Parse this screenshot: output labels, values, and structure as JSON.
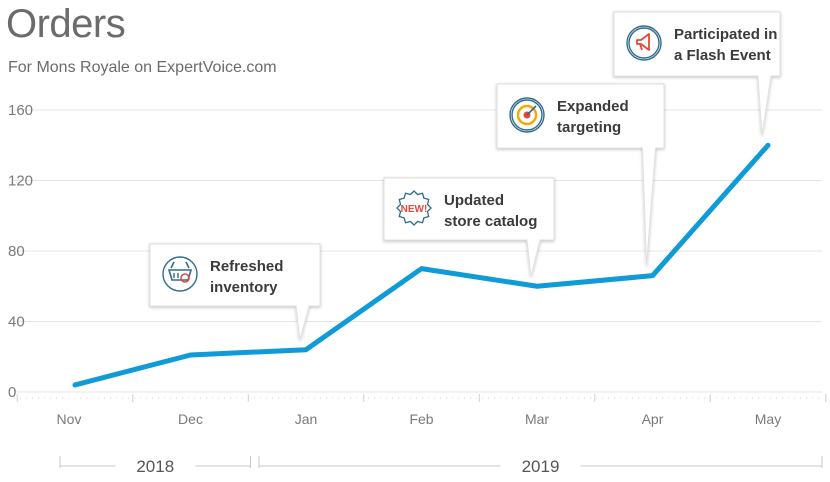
{
  "header": {
    "title": "Orders",
    "subtitle": "For Mons Royale on ExpertVoice.com"
  },
  "chart_data": {
    "type": "line",
    "title": "Orders",
    "subtitle": "For Mons Royale on ExpertVoice.com",
    "categories": [
      "Nov",
      "Dec",
      "Jan",
      "Feb",
      "Mar",
      "Apr",
      "May"
    ],
    "series": [
      {
        "values": [
          4,
          21,
          24,
          70,
          60,
          66,
          140
        ],
        "color": "#0e9bd8"
      }
    ],
    "ylim": [
      0,
      160
    ],
    "yticks": [
      "0",
      "40",
      "80",
      "120",
      "160"
    ],
    "grid": true,
    "xlabel": "",
    "ylabel": "",
    "year_groups": [
      {
        "label": "2018",
        "from": "Nov",
        "to": "Dec"
      },
      {
        "label": "2019",
        "from": "Jan",
        "to": "May"
      }
    ],
    "annotations": [
      {
        "point": "Jan",
        "lines": [
          "Refreshed",
          "inventory"
        ],
        "icon": "basket-icon"
      },
      {
        "point": "Mar",
        "lines": [
          "Updated",
          "store catalog"
        ],
        "icon": "new-badge-icon",
        "badge_text": "NEW!"
      },
      {
        "point": "Apr",
        "lines": [
          "Expanded",
          "targeting"
        ],
        "icon": "target-icon"
      },
      {
        "point": "May",
        "lines": [
          "Participated in",
          "a Flash Event"
        ],
        "icon": "megaphone-icon"
      }
    ]
  }
}
